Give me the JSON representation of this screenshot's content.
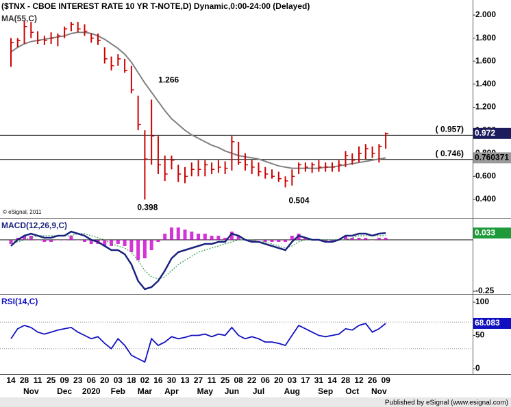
{
  "chart_data": [
    {
      "type": "ohlc",
      "title": "($TNX - CBOE INTEREST RATE 10 YR T-NOTE,D) Dynamic,0:00-24:00 (Delayed)",
      "credit": "© eSignal, 2011",
      "categories": [
        "14",
        null,
        "28",
        null,
        "11",
        null,
        "25",
        null,
        "09",
        null,
        "23",
        null,
        "06",
        null,
        "20",
        null,
        "03",
        null,
        "18",
        null,
        "02",
        null,
        "16",
        null,
        "30",
        null,
        "13",
        null,
        "27",
        null,
        "11",
        null,
        "25",
        null,
        "08",
        null,
        "22",
        null,
        "06",
        null,
        "20",
        null,
        "03",
        null,
        "17",
        null,
        "31",
        null,
        "14",
        null,
        "28",
        null,
        "12",
        null,
        "26",
        null,
        "09"
      ],
      "months": [
        null,
        null,
        null,
        "Nov",
        null,
        null,
        null,
        null,
        "Dec",
        null,
        null,
        null,
        "2020",
        null,
        null,
        null,
        "Feb",
        null,
        null,
        null,
        "Mar",
        null,
        null,
        null,
        "Apr",
        null,
        null,
        null,
        null,
        "May",
        null,
        null,
        null,
        "Jun",
        null,
        null,
        null,
        "Jul",
        null,
        null,
        null,
        null,
        "Aug",
        null,
        null,
        null,
        null,
        "Sep",
        null,
        null,
        null,
        "Oct",
        null,
        null,
        null,
        "Nov",
        null
      ],
      "ylim": [
        0.245,
        2.113
      ],
      "yticks": [
        {
          "value": 0.4,
          "label": "0.400"
        },
        {
          "value": 0.6,
          "label": "0.600"
        },
        {
          "value": 0.8,
          "label": "0.800"
        },
        {
          "value": 1.0,
          "label": "1.000"
        },
        {
          "value": 1.2,
          "label": "1.200"
        },
        {
          "value": 1.4,
          "label": "1.400"
        },
        {
          "value": 1.6,
          "label": "1.600"
        },
        {
          "value": 1.8,
          "label": "1.800"
        },
        {
          "value": 2.0,
          "label": "2.000"
        }
      ],
      "series": [
        {
          "name": "$TNX",
          "color": "#cc0000",
          "high": [
            1.8,
            1.8,
            1.95,
            1.94,
            1.86,
            1.82,
            1.85,
            1.84,
            1.9,
            1.94,
            1.94,
            1.92,
            1.84,
            1.84,
            1.72,
            1.64,
            1.66,
            1.62,
            1.56,
            1.3,
            1.0,
            1.266,
            0.95,
            0.78,
            0.78,
            0.7,
            0.68,
            0.72,
            0.74,
            0.74,
            0.72,
            0.74,
            0.73,
            0.95,
            0.9,
            0.8,
            0.74,
            0.72,
            0.68,
            0.66,
            0.64,
            0.6,
            0.66,
            0.72,
            0.72,
            0.72,
            0.74,
            0.72,
            0.72,
            0.74,
            0.82,
            0.8,
            0.86,
            0.88,
            0.86,
            0.88,
            0.98
          ],
          "low": [
            1.55,
            1.72,
            1.75,
            1.8,
            1.75,
            1.74,
            1.75,
            1.73,
            1.8,
            1.86,
            1.85,
            1.82,
            1.76,
            1.74,
            1.58,
            1.52,
            1.56,
            1.5,
            1.32,
            1.0,
            0.398,
            0.7,
            0.62,
            0.56,
            0.66,
            0.55,
            0.54,
            0.6,
            0.6,
            0.6,
            0.62,
            0.63,
            0.62,
            0.65,
            0.7,
            0.65,
            0.62,
            0.6,
            0.58,
            0.58,
            0.55,
            0.504,
            0.52,
            0.62,
            0.64,
            0.63,
            0.64,
            0.64,
            0.64,
            0.64,
            0.68,
            0.7,
            0.72,
            0.75,
            0.76,
            0.72,
            0.84
          ],
          "close": [
            1.76,
            1.78,
            1.9,
            1.85,
            1.78,
            1.78,
            1.8,
            1.82,
            1.88,
            1.92,
            1.88,
            1.86,
            1.8,
            1.78,
            1.62,
            1.56,
            1.62,
            1.52,
            1.35,
            1.05,
            0.75,
            0.95,
            0.7,
            0.62,
            0.74,
            0.62,
            0.6,
            0.66,
            0.66,
            0.7,
            0.66,
            0.68,
            0.67,
            0.9,
            0.72,
            0.7,
            0.68,
            0.64,
            0.62,
            0.6,
            0.58,
            0.56,
            0.6,
            0.7,
            0.68,
            0.7,
            0.68,
            0.68,
            0.68,
            0.7,
            0.78,
            0.74,
            0.8,
            0.84,
            0.8,
            0.86,
            0.972
          ]
        },
        {
          "name": "MA(55,C)",
          "color": "#808080",
          "values": [
            1.68,
            1.72,
            1.75,
            1.77,
            1.78,
            1.79,
            1.8,
            1.81,
            1.82,
            1.84,
            1.85,
            1.85,
            1.84,
            1.82,
            1.79,
            1.75,
            1.71,
            1.66,
            1.59,
            1.5,
            1.41,
            1.33,
            1.25,
            1.17,
            1.1,
            1.05,
            1.0,
            0.96,
            0.93,
            0.9,
            0.87,
            0.85,
            0.82,
            0.8,
            0.78,
            0.77,
            0.76,
            0.75,
            0.73,
            0.71,
            0.69,
            0.68,
            0.67,
            0.67,
            0.67,
            0.67,
            0.67,
            0.68,
            0.68,
            0.69,
            0.7,
            0.71,
            0.72,
            0.73,
            0.74,
            0.75,
            0.760371
          ]
        }
      ],
      "hlines": [
        {
          "value": 0.957,
          "label": "( 0.957)"
        },
        {
          "value": 0.746,
          "label": "( 0.746)"
        }
      ],
      "box_colors": [
        "#1c1c5c",
        "#9a9a9a"
      ]
    },
    {
      "type": "macd",
      "title": "MACD(12,26,9,C)",
      "ylim": [
        -0.26,
        0.1
      ],
      "yticks": [
        {
          "value": -0.25,
          "label": "-0.25"
        }
      ],
      "series": [
        {
          "name": "MACD",
          "color": "#1a237e",
          "values": [
            -0.03,
            0.0,
            0.02,
            0.03,
            0.02,
            0.01,
            0.01,
            0.02,
            0.02,
            0.04,
            0.03,
            0.02,
            0.0,
            -0.01,
            -0.03,
            -0.05,
            -0.05,
            -0.07,
            -0.12,
            -0.2,
            -0.24,
            -0.23,
            -0.2,
            -0.15,
            -0.09,
            -0.06,
            -0.05,
            -0.04,
            -0.03,
            -0.02,
            -0.02,
            -0.01,
            -0.01,
            0.03,
            0.02,
            0.0,
            -0.01,
            -0.01,
            -0.02,
            -0.03,
            -0.04,
            -0.05,
            -0.01,
            0.02,
            0.01,
            0.0,
            0.0,
            -0.01,
            -0.01,
            0.0,
            0.02,
            0.02,
            0.03,
            0.03,
            0.02,
            0.03,
            0.033
          ]
        },
        {
          "name": "Signal",
          "color": "#2e9a4a",
          "values": [
            -0.01,
            -0.01,
            0.0,
            0.01,
            0.02,
            0.02,
            0.02,
            0.02,
            0.02,
            0.02,
            0.03,
            0.03,
            0.02,
            0.01,
            0.0,
            -0.02,
            -0.03,
            -0.04,
            -0.06,
            -0.1,
            -0.15,
            -0.18,
            -0.19,
            -0.18,
            -0.15,
            -0.12,
            -0.1,
            -0.08,
            -0.06,
            -0.05,
            -0.04,
            -0.03,
            -0.02,
            -0.01,
            0.0,
            0.0,
            0.0,
            -0.01,
            -0.01,
            -0.02,
            -0.03,
            -0.04,
            -0.03,
            -0.01,
            0.0,
            0.0,
            0.0,
            0.0,
            0.0,
            0.0,
            0.0,
            0.01,
            0.02,
            0.02,
            0.02,
            0.02,
            0.02
          ]
        },
        {
          "name": "Histogram",
          "color": "#cc00cc",
          "values": [
            -0.02,
            0.01,
            0.02,
            0.02,
            0.0,
            -0.01,
            -0.01,
            0.0,
            0.0,
            0.02,
            0.0,
            -0.01,
            -0.02,
            -0.02,
            -0.03,
            -0.03,
            -0.02,
            -0.03,
            -0.06,
            -0.1,
            -0.09,
            -0.05,
            -0.01,
            0.03,
            0.06,
            0.06,
            0.05,
            0.04,
            0.03,
            0.03,
            0.02,
            0.02,
            0.01,
            0.04,
            0.02,
            0.0,
            -0.01,
            0.0,
            -0.01,
            -0.01,
            -0.01,
            -0.01,
            0.02,
            0.03,
            0.01,
            0.0,
            0.0,
            -0.01,
            -0.01,
            0.0,
            0.02,
            0.01,
            0.01,
            0.01,
            0.0,
            0.01,
            0.01
          ]
        }
      ],
      "box_color": "#1e9a3a"
    },
    {
      "type": "line",
      "title": "RSI(14,C)",
      "ylim": [
        -7.2,
        110.3
      ],
      "yticks": [
        0,
        50,
        100
      ],
      "levels": [
        70,
        30
      ],
      "series": [
        {
          "name": "RSI",
          "color": "#1010c0",
          "values": [
            45,
            60,
            65,
            62,
            55,
            52,
            55,
            58,
            60,
            62,
            55,
            50,
            45,
            48,
            38,
            30,
            45,
            35,
            20,
            15,
            10,
            45,
            35,
            40,
            48,
            45,
            47,
            50,
            50,
            52,
            48,
            52,
            50,
            62,
            50,
            45,
            48,
            45,
            40,
            40,
            38,
            35,
            50,
            65,
            60,
            55,
            50,
            48,
            50,
            52,
            60,
            58,
            65,
            68,
            55,
            60,
            68.083
          ]
        }
      ],
      "box_color": "#1010c0"
    }
  ],
  "footer": "Published by eSignal (www.esignal.com)"
}
